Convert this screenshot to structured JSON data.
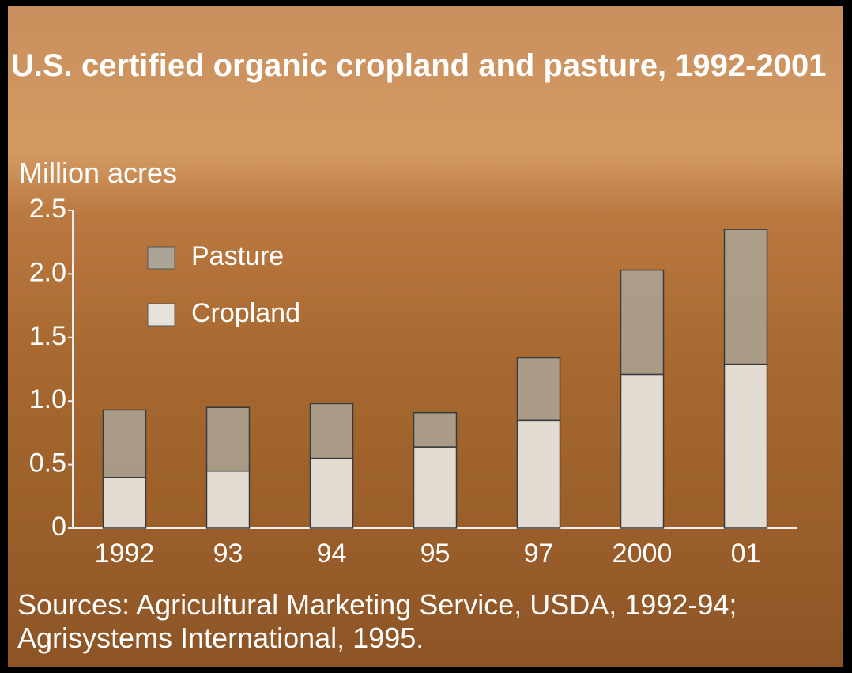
{
  "chart_data": {
    "type": "stacked-bar",
    "title": "U.S. certified organic cropland and pasture, 1992-2001",
    "y_label": "Million acres",
    "note": "Sources: Agricultural Marketing Service, USDA, 1992-94; Agrisystems International, 1995.",
    "categories": [
      "1992",
      "93",
      "94",
      "95",
      "97",
      "2000",
      "01"
    ],
    "series": [
      {
        "name": "Cropland",
        "color": "#e6e2da",
        "values": [
          0.4,
          0.45,
          0.55,
          0.64,
          0.85,
          1.21,
          1.29
        ]
      },
      {
        "name": "Pasture",
        "color": "#aaa596",
        "values": [
          0.53,
          0.5,
          0.43,
          0.27,
          0.49,
          0.82,
          1.06
        ]
      }
    ],
    "ylim": [
      0,
      2.5
    ],
    "yticks": [
      0,
      0.5,
      {
        "value": 1,
        "label": "1.0"
      },
      1.5,
      {
        "value": 2,
        "label": "2.0"
      },
      2.5
    ]
  }
}
